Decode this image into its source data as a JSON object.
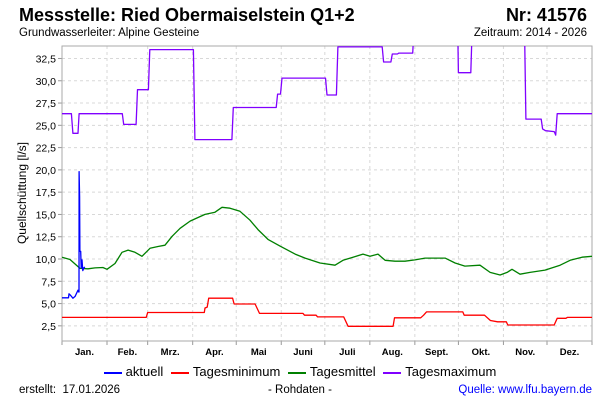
{
  "header": {
    "title": "Messstelle: Ried Obermaiselstein Q1+2",
    "nr": "Nr: 41576",
    "subtitle": "Grundwasserleiter: Alpine Gesteine",
    "zeitraum": "Zeitraum: 2014 - 2026"
  },
  "footer": {
    "erstellt_label": "erstellt:",
    "erstellt_date": "17.01.2026",
    "rohdaten": "- Rohdaten -",
    "quelle": "Quelle: www.lfu.bayern.de"
  },
  "chart_data": {
    "type": "line",
    "title": "Messstelle: Ried Obermaiselstein Q1+2",
    "xlabel": "",
    "ylabel": "Quellschüttung [l/s]",
    "xlim": [
      0,
      365
    ],
    "ylim": [
      0.8,
      33.9
    ],
    "x_unit": "day of year",
    "grid": true,
    "legend_position": "bottom",
    "month_starts": [
      0,
      31,
      59,
      90,
      120,
      151,
      181,
      212,
      243,
      273,
      304,
      334,
      365
    ],
    "month_labels": [
      "Jan.",
      "Feb.",
      "Mrz.",
      "Apr.",
      "Mai",
      "Juni",
      "Juli",
      "Aug.",
      "Sept.",
      "Okt.",
      "Nov.",
      "Dez."
    ],
    "y_ticks": [
      2.5,
      5.0,
      7.5,
      10.0,
      12.5,
      15.0,
      17.5,
      20.0,
      22.5,
      25.0,
      27.5,
      30.0,
      32.5
    ],
    "y_tick_labels": [
      "2,5",
      "5,0",
      "7,5",
      "10,0",
      "12,5",
      "15,0",
      "17,5",
      "20,0",
      "22,5",
      "25,0",
      "27,5",
      "30,0",
      "32,5"
    ],
    "series": [
      {
        "name": "aktuell",
        "color": "#0000ff",
        "points": [
          [
            0,
            5.65
          ],
          [
            4.5,
            5.65
          ],
          [
            4.8,
            6.1
          ],
          [
            6,
            5.9
          ],
          [
            7.5,
            5.6
          ],
          [
            9,
            5.8
          ],
          [
            11,
            6.5
          ],
          [
            11.5,
            6.3
          ],
          [
            11.7,
            6.3
          ],
          [
            11.8,
            19.8
          ],
          [
            12.1,
            17
          ],
          [
            12.3,
            10.85
          ],
          [
            12.9,
            10.85
          ],
          [
            13.2,
            9.0
          ],
          [
            13.8,
            9.9
          ],
          [
            14.3,
            8.7
          ],
          [
            15,
            9.0
          ],
          [
            15.8,
            9.1
          ]
        ]
      },
      {
        "name": "Tagesminimum",
        "color": "#ff0000",
        "points": [
          [
            0,
            3.45
          ],
          [
            58,
            3.45
          ],
          [
            59,
            4.0
          ],
          [
            98,
            4.0
          ],
          [
            98.5,
            4.5
          ],
          [
            100,
            4.6
          ],
          [
            101,
            5.6
          ],
          [
            117.5,
            5.6
          ],
          [
            118.5,
            4.95
          ],
          [
            133,
            4.95
          ],
          [
            136,
            3.9
          ],
          [
            166,
            3.9
          ],
          [
            167,
            3.7
          ],
          [
            175,
            3.7
          ],
          [
            176,
            3.5
          ],
          [
            194,
            3.5
          ],
          [
            197,
            2.45
          ],
          [
            228,
            2.45
          ],
          [
            229,
            3.4
          ],
          [
            247,
            3.4
          ],
          [
            249,
            3.7
          ],
          [
            251,
            4.07
          ],
          [
            276,
            4.07
          ],
          [
            277,
            3.7
          ],
          [
            291,
            3.7
          ],
          [
            295,
            3.1
          ],
          [
            300,
            2.95
          ],
          [
            306,
            2.95
          ],
          [
            307,
            2.6
          ],
          [
            339,
            2.6
          ],
          [
            341,
            3.35
          ],
          [
            347,
            3.35
          ],
          [
            348,
            3.45
          ],
          [
            365,
            3.45
          ]
        ]
      },
      {
        "name": "Tagesmittel",
        "color": "#008000",
        "points": [
          [
            0,
            10.2
          ],
          [
            5.5,
            9.95
          ],
          [
            12.4,
            8.95
          ],
          [
            17.9,
            8.9
          ],
          [
            22.7,
            9.0
          ],
          [
            28.2,
            9.05
          ],
          [
            31,
            8.85
          ],
          [
            36.5,
            9.5
          ],
          [
            41.3,
            10.75
          ],
          [
            45.5,
            11.0
          ],
          [
            50.3,
            10.75
          ],
          [
            55.1,
            10.3
          ],
          [
            60.6,
            11.2
          ],
          [
            66.1,
            11.4
          ],
          [
            70.9,
            11.55
          ],
          [
            75.8,
            12.55
          ],
          [
            81.3,
            13.45
          ],
          [
            88.2,
            14.25
          ],
          [
            91.6,
            14.5
          ],
          [
            98.5,
            15.0
          ],
          [
            105.4,
            15.25
          ],
          [
            110.2,
            15.8
          ],
          [
            115.7,
            15.7
          ],
          [
            122.6,
            15.35
          ],
          [
            129.5,
            14.35
          ],
          [
            135,
            13.3
          ],
          [
            141.9,
            12.2
          ],
          [
            150.1,
            11.45
          ],
          [
            160.5,
            10.55
          ],
          [
            167.4,
            10.1
          ],
          [
            177.7,
            9.55
          ],
          [
            188,
            9.3
          ],
          [
            193.5,
            9.85
          ],
          [
            200.4,
            10.2
          ],
          [
            207.3,
            10.55
          ],
          [
            212.1,
            10.3
          ],
          [
            217.6,
            10.55
          ],
          [
            222.5,
            9.85
          ],
          [
            229.3,
            9.75
          ],
          [
            236.2,
            9.75
          ],
          [
            243.1,
            9.9
          ],
          [
            250,
            10.1
          ],
          [
            263.8,
            10.1
          ],
          [
            270.7,
            9.55
          ],
          [
            277.5,
            9.2
          ],
          [
            287.9,
            9.3
          ],
          [
            294.8,
            8.5
          ],
          [
            301.7,
            8.2
          ],
          [
            306.5,
            8.5
          ],
          [
            309.9,
            8.85
          ],
          [
            315.4,
            8.3
          ],
          [
            322.3,
            8.5
          ],
          [
            332.6,
            8.75
          ],
          [
            343,
            9.3
          ],
          [
            349.9,
            9.85
          ],
          [
            358.1,
            10.2
          ],
          [
            365,
            10.3
          ]
        ]
      },
      {
        "name": "Tagesmaximum",
        "color": "#8000ff",
        "points": [
          [
            0,
            26.3
          ],
          [
            6.5,
            26.3
          ],
          [
            7.5,
            24.1
          ],
          [
            11,
            24.1
          ],
          [
            11.8,
            26.3
          ],
          [
            41.5,
            26.3
          ],
          [
            42.5,
            25.1
          ],
          [
            51,
            25.1
          ],
          [
            52,
            29.0
          ],
          [
            59.5,
            29.0
          ],
          [
            60.5,
            33.5
          ],
          [
            90.5,
            33.5
          ],
          [
            91.5,
            23.4
          ],
          [
            117,
            23.4
          ],
          [
            118,
            27.0
          ],
          [
            147.5,
            27.0
          ],
          [
            148.5,
            28.5
          ],
          [
            150.5,
            28.5
          ],
          [
            151.5,
            30.3
          ],
          [
            181.5,
            30.3
          ],
          [
            182.5,
            28.4
          ],
          [
            189,
            28.4
          ],
          [
            190,
            33.8
          ],
          [
            220.5,
            33.8
          ],
          [
            221.5,
            32.1
          ],
          [
            226.5,
            32.1
          ],
          [
            227.5,
            33.0
          ],
          [
            231,
            33.0
          ],
          [
            232,
            33.1
          ],
          [
            241.5,
            33.1
          ],
          [
            242.5,
            36
          ],
          [
            272.5,
            36
          ],
          [
            273,
            30.9
          ],
          [
            281.5,
            30.9
          ],
          [
            282.5,
            36
          ],
          [
            318.5,
            36
          ],
          [
            319.5,
            25.7
          ],
          [
            330,
            25.7
          ],
          [
            331,
            24.6
          ],
          [
            333,
            24.4
          ],
          [
            339,
            24.3
          ],
          [
            340,
            23.9
          ],
          [
            341,
            26.3
          ],
          [
            365,
            26.3
          ]
        ]
      }
    ]
  }
}
